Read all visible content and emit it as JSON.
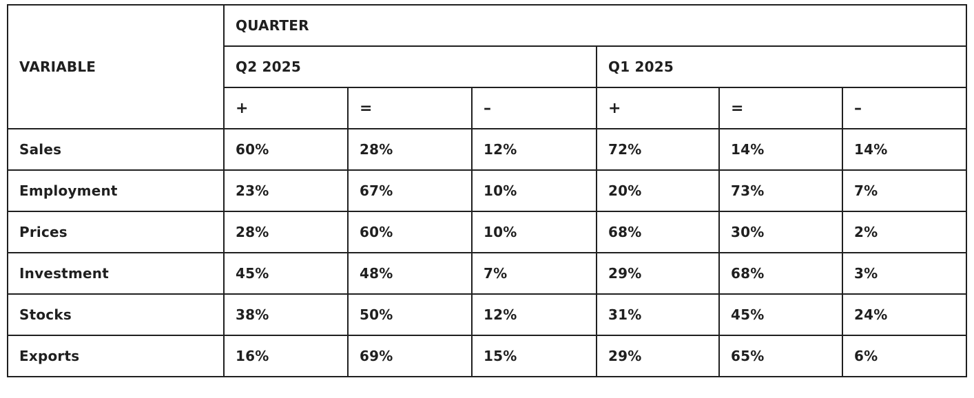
{
  "header": {
    "variable_label": "VARIABLE",
    "quarter_label": "QUARTER",
    "quarters": [
      {
        "label": "Q2 2025",
        "subcols": [
          "+",
          "=",
          "–"
        ]
      },
      {
        "label": "Q1 2025",
        "subcols": [
          "+",
          "=",
          "–"
        ]
      }
    ]
  },
  "rows": [
    {
      "label": "Sales",
      "values": [
        "60%",
        "28%",
        "12%",
        "72%",
        "14%",
        "14%"
      ]
    },
    {
      "label": "Employment",
      "values": [
        "23%",
        "67%",
        "10%",
        "20%",
        "73%",
        "7%"
      ]
    },
    {
      "label": "Prices",
      "values": [
        "28%",
        "60%",
        "10%",
        "68%",
        "30%",
        "2%"
      ]
    },
    {
      "label": "Investment",
      "values": [
        "45%",
        "48%",
        "7%",
        "29%",
        "68%",
        "3%"
      ]
    },
    {
      "label": "Stocks",
      "values": [
        "38%",
        "50%",
        "12%",
        "31%",
        "45%",
        "24%"
      ]
    },
    {
      "label": "Exports",
      "values": [
        "16%",
        "69%",
        "15%",
        "29%",
        "65%",
        "6%"
      ]
    }
  ]
}
